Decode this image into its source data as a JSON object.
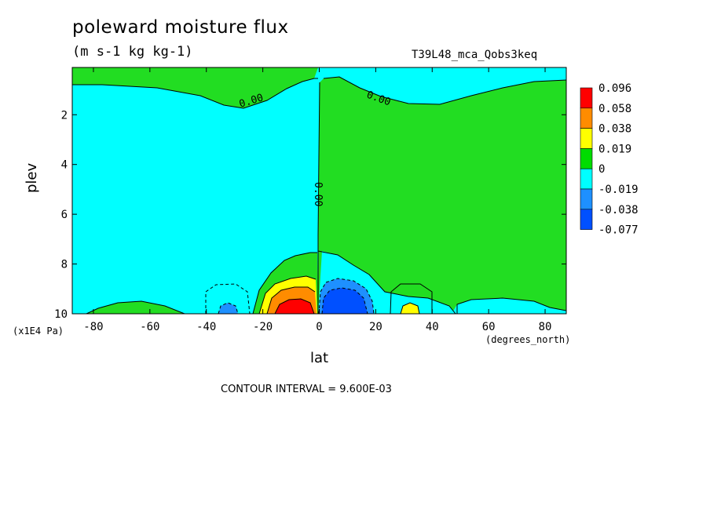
{
  "chart_data": {
    "type": "heatmap",
    "title": "poleward moisture flux",
    "units": "(m s-1 kg kg-1)",
    "dataset": "T39L48_mca_Qobs3keq",
    "xlabel": "lat",
    "xunits": "(degrees_north)",
    "ylabel": "plev",
    "yunits": "(x1E4 Pa)",
    "x_ticks": [
      -80,
      -60,
      -40,
      -20,
      0,
      20,
      40,
      60,
      80
    ],
    "x_tick_labels": [
      "-80",
      "-60",
      "-40",
      "-20",
      "0",
      "20",
      "40",
      "60",
      "80"
    ],
    "y_ticks": [
      2,
      4,
      6,
      8,
      10
    ],
    "y_tick_labels": [
      "2",
      "4",
      "6",
      "8",
      "10"
    ],
    "xlim": [
      -87.5,
      87.5
    ],
    "ylim": [
      0.1,
      10
    ],
    "contour_interval": "CONTOUR INTERVAL = 9.600E-03",
    "contour_labels": [
      "0.00",
      "0.00",
      "0.00"
    ],
    "legend_levels": [
      "0.096",
      "0.058",
      "0.038",
      "0.019",
      "0",
      "-0.019",
      "-0.038",
      "-0.077"
    ],
    "legend_colors": [
      "#ff0000",
      "#ff8c00",
      "#ffff00",
      "#00dc00",
      "#00ffff",
      "#1e90ff",
      "#0050ff"
    ],
    "colors": {
      "positive_small": "#22dd22",
      "negative_small": "#00ffff",
      "positive_mid": "#ffff00",
      "positive_high": "#ff8c00",
      "positive_max": "#ff0000",
      "negative_mid": "#1e90ff",
      "negative_max": "#0050ff"
    }
  }
}
